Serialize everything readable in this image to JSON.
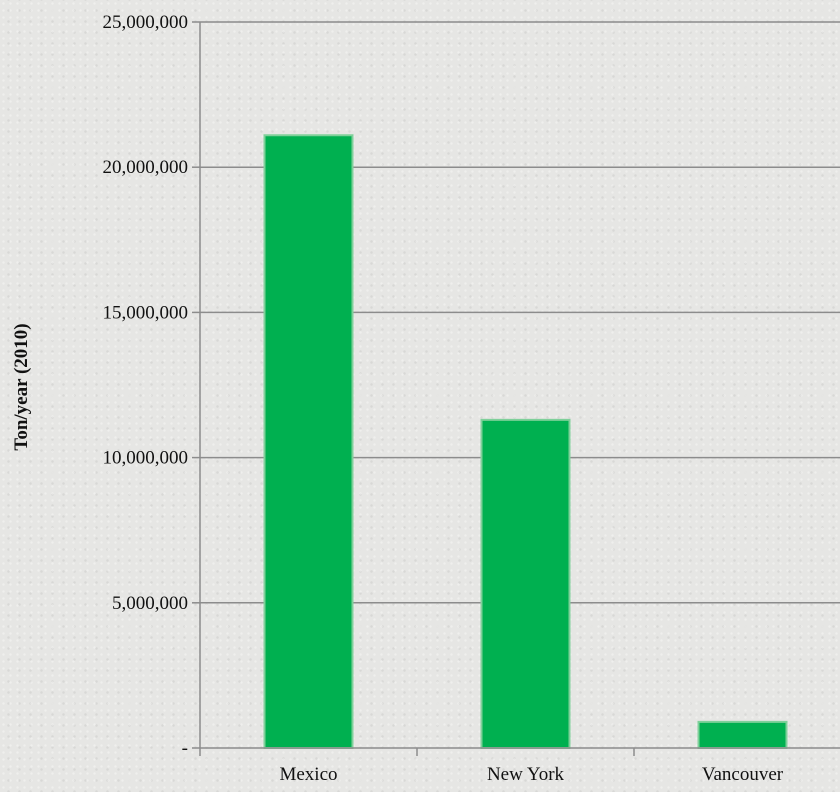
{
  "chart_data": {
    "type": "bar",
    "categories": [
      "Mexico",
      "New York",
      "Vancouver"
    ],
    "values": [
      21100000,
      11300000,
      900000
    ],
    "title": "",
    "xlabel": "",
    "ylabel": "Ton/year (2010)",
    "ylim": [
      0,
      25000000
    ],
    "yticks": [
      0,
      5000000,
      10000000,
      15000000,
      20000000,
      25000000
    ],
    "ytick_labels": [
      "-",
      "5,000,000",
      "10,000,000",
      "15,000,000",
      "20,000,000",
      "25,000,000"
    ],
    "grid": true,
    "legend": "none",
    "colors": {
      "bar": "#00b050",
      "bar_border": "#7fd09a",
      "grid": "#8c8c8c",
      "axis": "#8c8c8c"
    }
  }
}
